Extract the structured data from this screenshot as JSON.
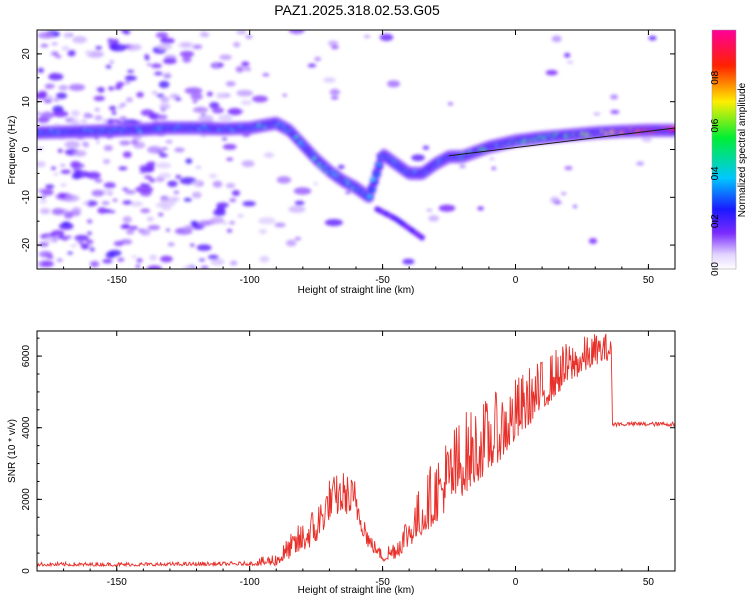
{
  "figure_title": "PAZ1.2025.318.02.53.G05",
  "colors": {
    "snr_line": "#e8302a",
    "ridge_line": "#1a1a1a",
    "axes": "#000000"
  },
  "chart_data": [
    {
      "id": "spectrogram",
      "type": "heatmap",
      "xlabel": "Height of straight line (km)",
      "ylabel": "Frequency (Hz)",
      "xlim": [
        -180,
        60
      ],
      "ylim": [
        -25,
        25
      ],
      "xticks": [
        -150,
        -100,
        -50,
        0,
        50
      ],
      "yticks": [
        -20,
        -10,
        0,
        10,
        20
      ],
      "colorbar": {
        "label": "Normalized spectral amplitude",
        "range": [
          0,
          1
        ],
        "ticks": [
          0.0,
          0.2,
          0.4,
          0.6,
          0.8
        ],
        "tick_labels": [
          "0.0",
          "0.2",
          "0.4",
          "0.6",
          "0.8"
        ],
        "colormap": "rainbow (white-violet-blue-cyan-green-yellow-red-magenta)"
      },
      "ridge_path": [
        [
          -180,
          3.5
        ],
        [
          -160,
          3.8
        ],
        [
          -150,
          4.0
        ],
        [
          -140,
          4.2
        ],
        [
          -130,
          4.5
        ],
        [
          -120,
          4.5
        ],
        [
          -110,
          4.3
        ],
        [
          -100,
          4.5
        ],
        [
          -95,
          5.0
        ],
        [
          -90,
          5.5
        ],
        [
          -85,
          4.0
        ],
        [
          -80,
          1.0
        ],
        [
          -75,
          -2.0
        ],
        [
          -70,
          -4.5
        ],
        [
          -65,
          -6.5
        ],
        [
          -60,
          -8.0
        ],
        [
          -55,
          -10.0
        ],
        [
          -50,
          -1.0
        ],
        [
          -45,
          -3.0
        ],
        [
          -40,
          -5.0
        ],
        [
          -35,
          -5.0
        ],
        [
          -30,
          -3.0
        ],
        [
          -25,
          -1.5
        ],
        [
          -20,
          -1.5
        ],
        [
          -10,
          0.5
        ],
        [
          0,
          1.8
        ],
        [
          10,
          2.5
        ],
        [
          20,
          3.0
        ],
        [
          30,
          3.5
        ],
        [
          40,
          3.8
        ],
        [
          50,
          4.0
        ],
        [
          60,
          4.0
        ]
      ],
      "secondary_path": [
        [
          -52,
          -12.5
        ],
        [
          -45,
          -14.5
        ],
        [
          -40,
          -16.5
        ],
        [
          -35,
          -18.5
        ]
      ],
      "fitted_line": [
        [
          -25,
          -1.3
        ],
        [
          60,
          4.5
        ]
      ]
    },
    {
      "id": "snr",
      "type": "line",
      "xlabel": "Height of straight line (km)",
      "ylabel": "SNR (10 * v/v)",
      "xlim": [
        -180,
        60
      ],
      "ylim": [
        0,
        6700
      ],
      "xticks": [
        -150,
        -100,
        -50,
        0,
        50
      ],
      "yticks": [
        0,
        2000,
        4000,
        6000
      ],
      "envelope_points": [
        [
          -180,
          180
        ],
        [
          -140,
          180
        ],
        [
          -100,
          200
        ],
        [
          -90,
          300
        ],
        [
          -85,
          600
        ],
        [
          -80,
          900
        ],
        [
          -75,
          1200
        ],
        [
          -70,
          1900
        ],
        [
          -65,
          2100
        ],
        [
          -60,
          1900
        ],
        [
          -55,
          800
        ],
        [
          -50,
          400
        ],
        [
          -45,
          600
        ],
        [
          -40,
          1100
        ],
        [
          -35,
          1600
        ],
        [
          -30,
          2100
        ],
        [
          -25,
          2600
        ],
        [
          -20,
          3000
        ],
        [
          -15,
          3300
        ],
        [
          -10,
          3600
        ],
        [
          -5,
          3900
        ],
        [
          0,
          4300
        ],
        [
          5,
          4700
        ],
        [
          10,
          5000
        ],
        [
          15,
          5400
        ],
        [
          20,
          5700
        ],
        [
          25,
          5900
        ],
        [
          30,
          6100
        ],
        [
          36,
          6200
        ],
        [
          36.5,
          4100
        ],
        [
          60,
          4100
        ]
      ],
      "noise_amplitude": [
        [
          -180,
          80
        ],
        [
          -100,
          80
        ],
        [
          -90,
          300
        ],
        [
          -75,
          900
        ],
        [
          -60,
          900
        ],
        [
          -52,
          200
        ],
        [
          -45,
          500
        ],
        [
          -30,
          1500
        ],
        [
          -20,
          1800
        ],
        [
          0,
          1400
        ],
        [
          20,
          900
        ],
        [
          35,
          600
        ],
        [
          36.5,
          60
        ],
        [
          60,
          60
        ]
      ]
    }
  ]
}
